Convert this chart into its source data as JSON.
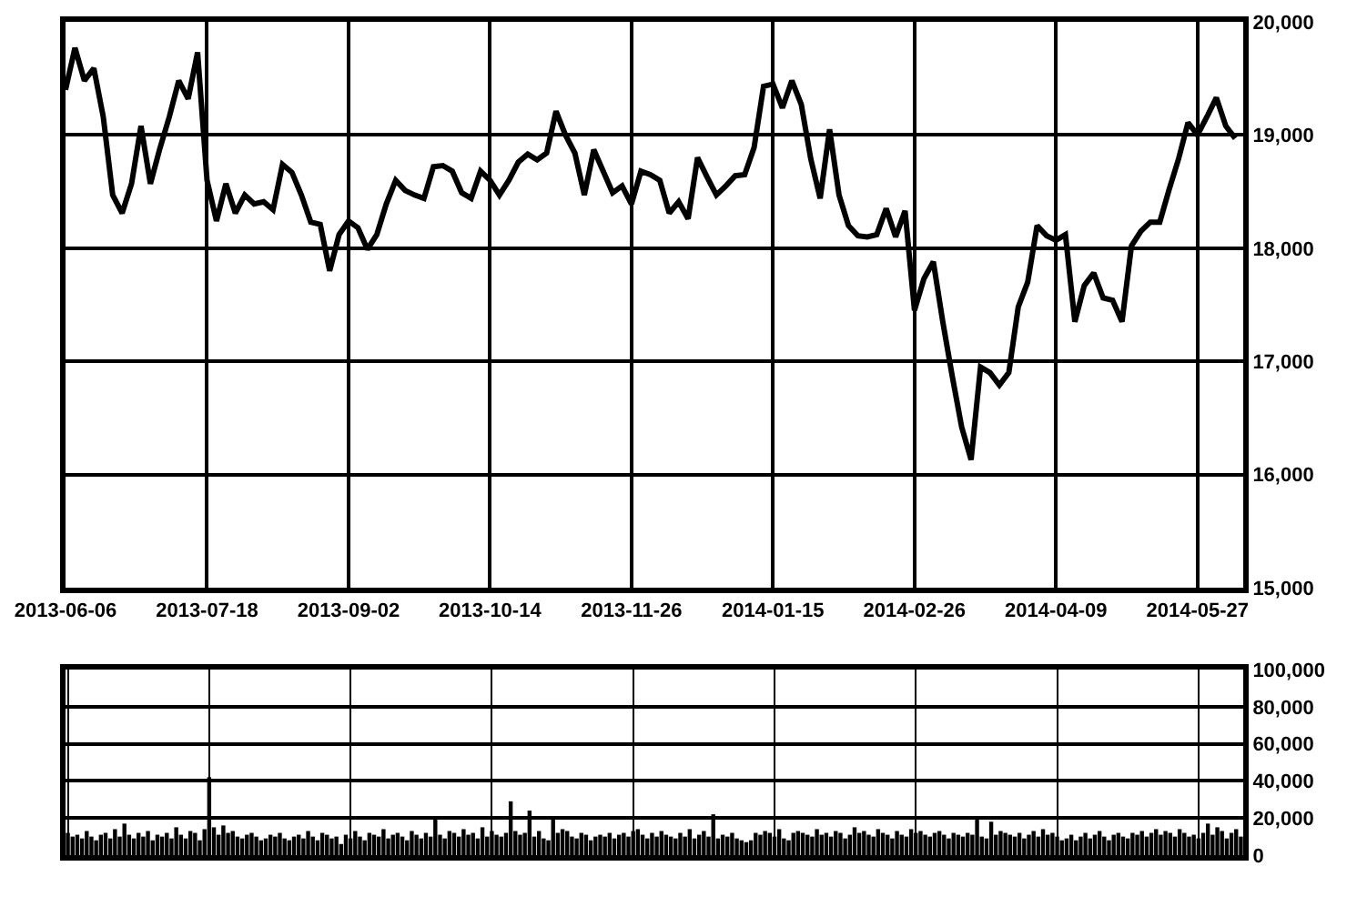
{
  "chart_data": [
    {
      "type": "line",
      "color": "#000000",
      "grid": true,
      "categories": [
        "2013-06-06",
        null,
        null,
        null,
        null,
        null,
        null,
        null,
        null,
        null,
        null,
        null,
        null,
        null,
        null,
        "2013-07-18",
        null,
        null,
        null,
        null,
        null,
        null,
        null,
        null,
        null,
        null,
        null,
        null,
        null,
        null,
        "2013-09-02",
        null,
        null,
        null,
        null,
        null,
        null,
        null,
        null,
        null,
        null,
        null,
        null,
        null,
        null,
        "2013-10-14",
        null,
        null,
        null,
        null,
        null,
        null,
        null,
        null,
        null,
        null,
        null,
        null,
        null,
        null,
        "2013-11-26",
        null,
        null,
        null,
        null,
        null,
        null,
        null,
        null,
        null,
        null,
        null,
        null,
        null,
        null,
        "2014-01-15",
        null,
        null,
        null,
        null,
        null,
        null,
        null,
        null,
        null,
        null,
        null,
        null,
        null,
        null,
        "2014-02-26",
        null,
        null,
        null,
        null,
        null,
        null,
        null,
        null,
        null,
        null,
        null,
        null,
        null,
        null,
        "2014-04-09",
        null,
        null,
        null,
        null,
        null,
        null,
        null,
        null,
        null,
        null,
        null,
        null,
        null,
        null,
        "2014-05-27",
        null,
        null,
        null,
        null
      ],
      "values": [
        19400,
        19770,
        19480,
        19590,
        19160,
        18470,
        18310,
        18570,
        19080,
        18570,
        18880,
        19160,
        19480,
        19320,
        19730,
        18600,
        18240,
        18570,
        18310,
        18470,
        18390,
        18410,
        18340,
        18740,
        18670,
        18470,
        18230,
        18210,
        17800,
        18120,
        18240,
        18180,
        17990,
        18120,
        18390,
        18600,
        18510,
        18470,
        18440,
        18720,
        18730,
        18680,
        18490,
        18440,
        18680,
        18600,
        18470,
        18600,
        18760,
        18830,
        18780,
        18840,
        19210,
        19000,
        18840,
        18470,
        18870,
        18680,
        18490,
        18550,
        18390,
        18680,
        18650,
        18600,
        18310,
        18410,
        18260,
        18800,
        18630,
        18470,
        18550,
        18640,
        18650,
        18890,
        19430,
        19450,
        19240,
        19480,
        19270,
        18790,
        18440,
        19050,
        18470,
        18200,
        18110,
        18100,
        18120,
        18350,
        18100,
        18330,
        17450,
        17730,
        17880,
        17350,
        16870,
        16420,
        16130,
        16950,
        16900,
        16790,
        16900,
        17480,
        17700,
        18200,
        18110,
        18070,
        18120,
        17350,
        17670,
        17780,
        17560,
        17540,
        17350,
        18020,
        18150,
        18230,
        18230,
        18520,
        18790,
        19110,
        19000,
        19160,
        19330,
        19080,
        18970
      ],
      "ylim": [
        15000,
        20000
      ],
      "yticks": [
        {
          "value": 15000,
          "label": "15,000"
        },
        {
          "value": 16000,
          "label": "16,000"
        },
        {
          "value": 17000,
          "label": "17,000"
        },
        {
          "value": 18000,
          "label": "18,000"
        },
        {
          "value": 19000,
          "label": "19,000"
        },
        {
          "value": 20000,
          "label": "20,000"
        }
      ]
    },
    {
      "type": "bar",
      "color": "#000000",
      "grid": true,
      "tick_labels": "y",
      "categories": [
        "2013-06-06",
        null,
        null,
        null,
        null,
        null,
        null,
        null,
        null,
        null,
        null,
        null,
        null,
        null,
        null,
        null,
        null,
        null,
        null,
        null,
        null,
        null,
        null,
        null,
        null,
        null,
        null,
        null,
        null,
        null,
        "2013-07-18",
        null,
        null,
        null,
        null,
        null,
        null,
        null,
        null,
        null,
        null,
        null,
        null,
        null,
        null,
        null,
        null,
        null,
        null,
        null,
        null,
        null,
        null,
        null,
        null,
        null,
        null,
        null,
        null,
        null,
        "2013-09-02",
        null,
        null,
        null,
        null,
        null,
        null,
        null,
        null,
        null,
        null,
        null,
        null,
        null,
        null,
        null,
        null,
        null,
        null,
        null,
        null,
        null,
        null,
        null,
        null,
        null,
        null,
        null,
        null,
        null,
        "2013-10-14",
        null,
        null,
        null,
        null,
        null,
        null,
        null,
        null,
        null,
        null,
        null,
        null,
        null,
        null,
        null,
        null,
        null,
        null,
        null,
        null,
        null,
        null,
        null,
        null,
        null,
        null,
        null,
        null,
        null,
        "2013-11-26",
        null,
        null,
        null,
        null,
        null,
        null,
        null,
        null,
        null,
        null,
        null,
        null,
        null,
        null,
        null,
        null,
        null,
        null,
        null,
        null,
        null,
        null,
        null,
        null,
        null,
        null,
        null,
        null,
        null,
        "2014-01-15",
        null,
        null,
        null,
        null,
        null,
        null,
        null,
        null,
        null,
        null,
        null,
        null,
        null,
        null,
        null,
        null,
        null,
        null,
        null,
        null,
        null,
        null,
        null,
        null,
        null,
        null,
        null,
        null,
        null,
        "2014-02-26",
        null,
        null,
        null,
        null,
        null,
        null,
        null,
        null,
        null,
        null,
        null,
        null,
        null,
        null,
        null,
        null,
        null,
        null,
        null,
        null,
        null,
        null,
        null,
        null,
        null,
        null,
        null,
        null,
        null,
        "2014-04-09",
        null,
        null,
        null,
        null,
        null,
        null,
        null,
        null,
        null,
        null,
        null,
        null,
        null,
        null,
        null,
        null,
        null,
        null,
        null,
        null,
        null,
        null,
        null,
        null,
        null,
        null,
        null,
        null,
        null,
        "2014-05-27",
        null,
        null,
        null,
        null,
        null,
        null,
        null,
        null,
        null
      ],
      "values": [
        12000,
        10000,
        11000,
        9000,
        13000,
        10000,
        8000,
        11000,
        12000,
        9000,
        14000,
        10000,
        17000,
        11000,
        9000,
        12000,
        10000,
        13000,
        8000,
        11000,
        10000,
        12000,
        9000,
        15000,
        11000,
        9000,
        13000,
        12000,
        8000,
        14000,
        42000,
        15000,
        11000,
        16000,
        12000,
        13000,
        10000,
        9000,
        11000,
        12000,
        10000,
        8000,
        9000,
        11000,
        10000,
        12000,
        9000,
        8000,
        10000,
        11000,
        9000,
        13000,
        10000,
        8000,
        12000,
        11000,
        9000,
        10000,
        6000,
        11000,
        9000,
        13000,
        10000,
        8000,
        12000,
        11000,
        10000,
        14000,
        9000,
        11000,
        12000,
        10000,
        8000,
        13000,
        11000,
        9000,
        12000,
        10000,
        20000,
        11000,
        9000,
        13000,
        12000,
        10000,
        14000,
        11000,
        12000,
        9000,
        15000,
        10000,
        13000,
        11000,
        10000,
        12000,
        29000,
        13000,
        11000,
        12000,
        24000,
        10000,
        13000,
        9000,
        8000,
        20000,
        12000,
        14000,
        13000,
        10000,
        9000,
        12000,
        11000,
        8000,
        10000,
        11000,
        10000,
        12000,
        9000,
        11000,
        12000,
        10000,
        13000,
        14000,
        11000,
        9000,
        12000,
        10000,
        13000,
        11000,
        10000,
        9000,
        12000,
        10000,
        14000,
        9000,
        11000,
        13000,
        10000,
        22000,
        9000,
        11000,
        10000,
        12000,
        9000,
        8000,
        7000,
        8000,
        12000,
        11000,
        13000,
        12000,
        10000,
        14000,
        9000,
        8000,
        12000,
        13000,
        12000,
        11000,
        10000,
        14000,
        11000,
        12000,
        10000,
        13000,
        12000,
        9000,
        11000,
        15000,
        12000,
        13000,
        11000,
        10000,
        14000,
        12000,
        11000,
        9000,
        13000,
        11000,
        10000,
        14000,
        12000,
        13000,
        11000,
        10000,
        12000,
        13000,
        11000,
        9000,
        12000,
        11000,
        10000,
        12000,
        11000,
        20000,
        10000,
        9000,
        18000,
        11000,
        13000,
        12000,
        11000,
        10000,
        12000,
        9000,
        11000,
        13000,
        10000,
        14000,
        11000,
        12000,
        10000,
        8000,
        9000,
        11000,
        8000,
        10000,
        12000,
        9000,
        11000,
        13000,
        10000,
        8000,
        11000,
        12000,
        10000,
        9000,
        12000,
        11000,
        13000,
        10000,
        12000,
        14000,
        11000,
        13000,
        12000,
        10000,
        14000,
        12000,
        10000,
        11000,
        9000,
        12000,
        17000,
        11000,
        15000,
        13000,
        9000,
        12000,
        14000,
        10000
      ],
      "ylim": [
        0,
        100000
      ],
      "yticks": [
        0,
        {
          "value": 20000,
          "label": "20,000"
        },
        {
          "value": 40000,
          "label": "40,000"
        },
        {
          "value": 60000,
          "label": "60,000"
        },
        {
          "value": 80000,
          "label": "80,000"
        },
        {
          "value": 100000,
          "label": "100,000"
        }
      ]
    }
  ]
}
